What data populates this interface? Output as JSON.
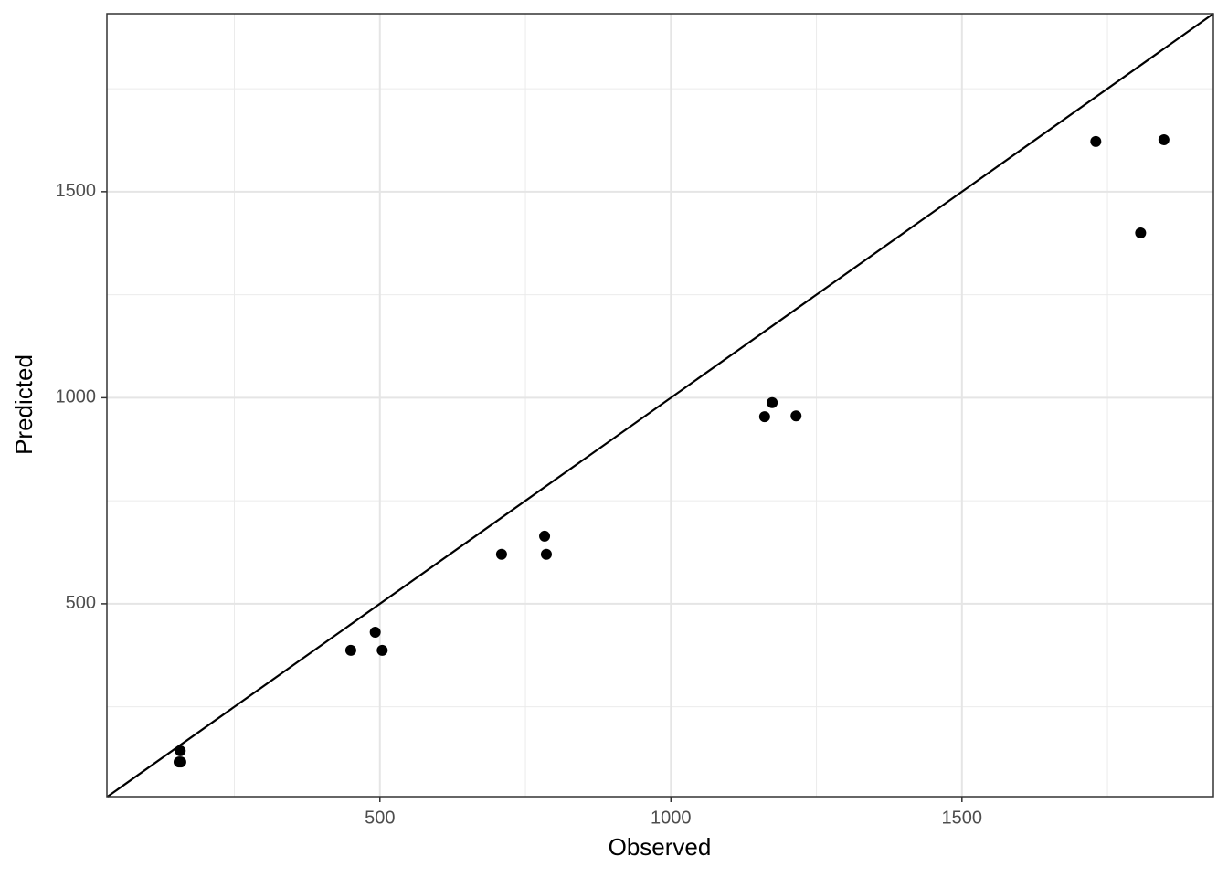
{
  "chart_data": {
    "type": "scatter",
    "x_label": "Observed",
    "y_label": "Predicted",
    "x": [
      157,
      155,
      158,
      450,
      492,
      504,
      709,
      783,
      786,
      1161,
      1174,
      1215,
      1730,
      1807,
      1847
    ],
    "values": [
      143,
      116,
      116,
      387,
      431,
      387,
      620,
      664,
      620,
      954,
      988,
      956,
      1622,
      1400,
      1626
    ],
    "color": "#000000",
    "xlim": [
      31,
      1932
    ],
    "ylim": [
      32,
      1932
    ],
    "xticks": [
      500,
      1000,
      1500
    ],
    "yticks": [
      500,
      1000,
      1500
    ],
    "xminor": [
      250,
      750,
      1250,
      1750
    ],
    "yminor": [
      250,
      750,
      1250,
      1750
    ],
    "grid": true,
    "identity_line": true
  }
}
